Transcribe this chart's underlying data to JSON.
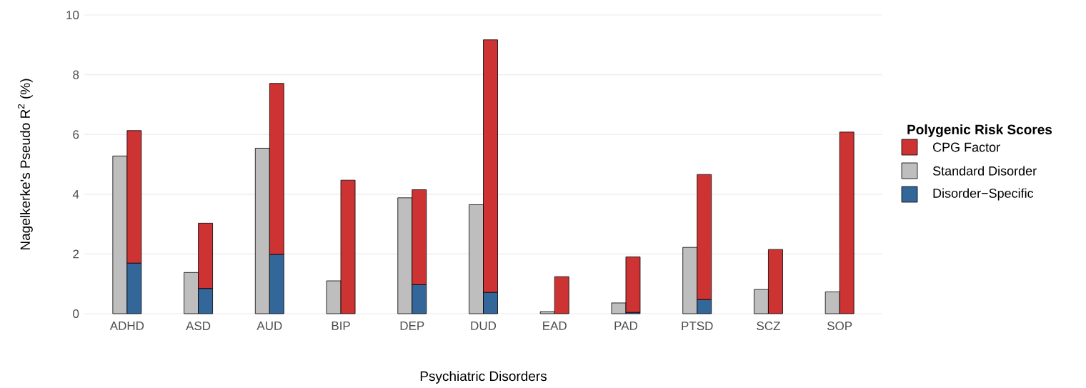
{
  "chart_data": [
    {
      "type": "bar",
      "xlabel": "Psychiatric Disorders",
      "ylabel": "Nagelkerke's Pseudo R$^{2}$ (%)",
      "legend_title": "Polygenic Risk Scores",
      "legend": "right",
      "grid": "y",
      "ylim": [
        0,
        10
      ],
      "yticks": [
        0,
        2,
        4,
        6,
        8,
        10
      ],
      "categories": [
        "ADHD",
        "ASD",
        "AUD",
        "BIP",
        "DEP",
        "DUD",
        "EAD",
        "PAD",
        "PTSD",
        "SCZ",
        "SOP"
      ],
      "series": [
        {
          "name": "Standard Disorder",
          "color": "#bebebe",
          "values": [
            5.28,
            1.38,
            5.54,
            1.1,
            3.88,
            3.65,
            0.07,
            0.36,
            2.22,
            0.81,
            0.73
          ]
        }
      ]
    },
    {
      "type": "bar",
      "stacked": true,
      "legend": "right",
      "tick_labels": false,
      "ylim": [
        0,
        10
      ],
      "categories": [
        null,
        null,
        null,
        null,
        null,
        null,
        null,
        null,
        null,
        null,
        null
      ],
      "series": [
        {
          "name": "Disorder−Specific",
          "color": "#336699",
          "values": [
            1.69,
            0.84,
            1.98,
            0,
            0.97,
            0.71,
            0,
            0.04,
            0.47,
            0,
            0
          ]
        },
        {
          "name": "CPG Factor",
          "color": "#cd3333",
          "values": [
            4.44,
            2.19,
            5.73,
            4.47,
            3.18,
            8.46,
            1.24,
            1.86,
            4.19,
            2.15,
            6.08
          ]
        }
      ]
    }
  ]
}
